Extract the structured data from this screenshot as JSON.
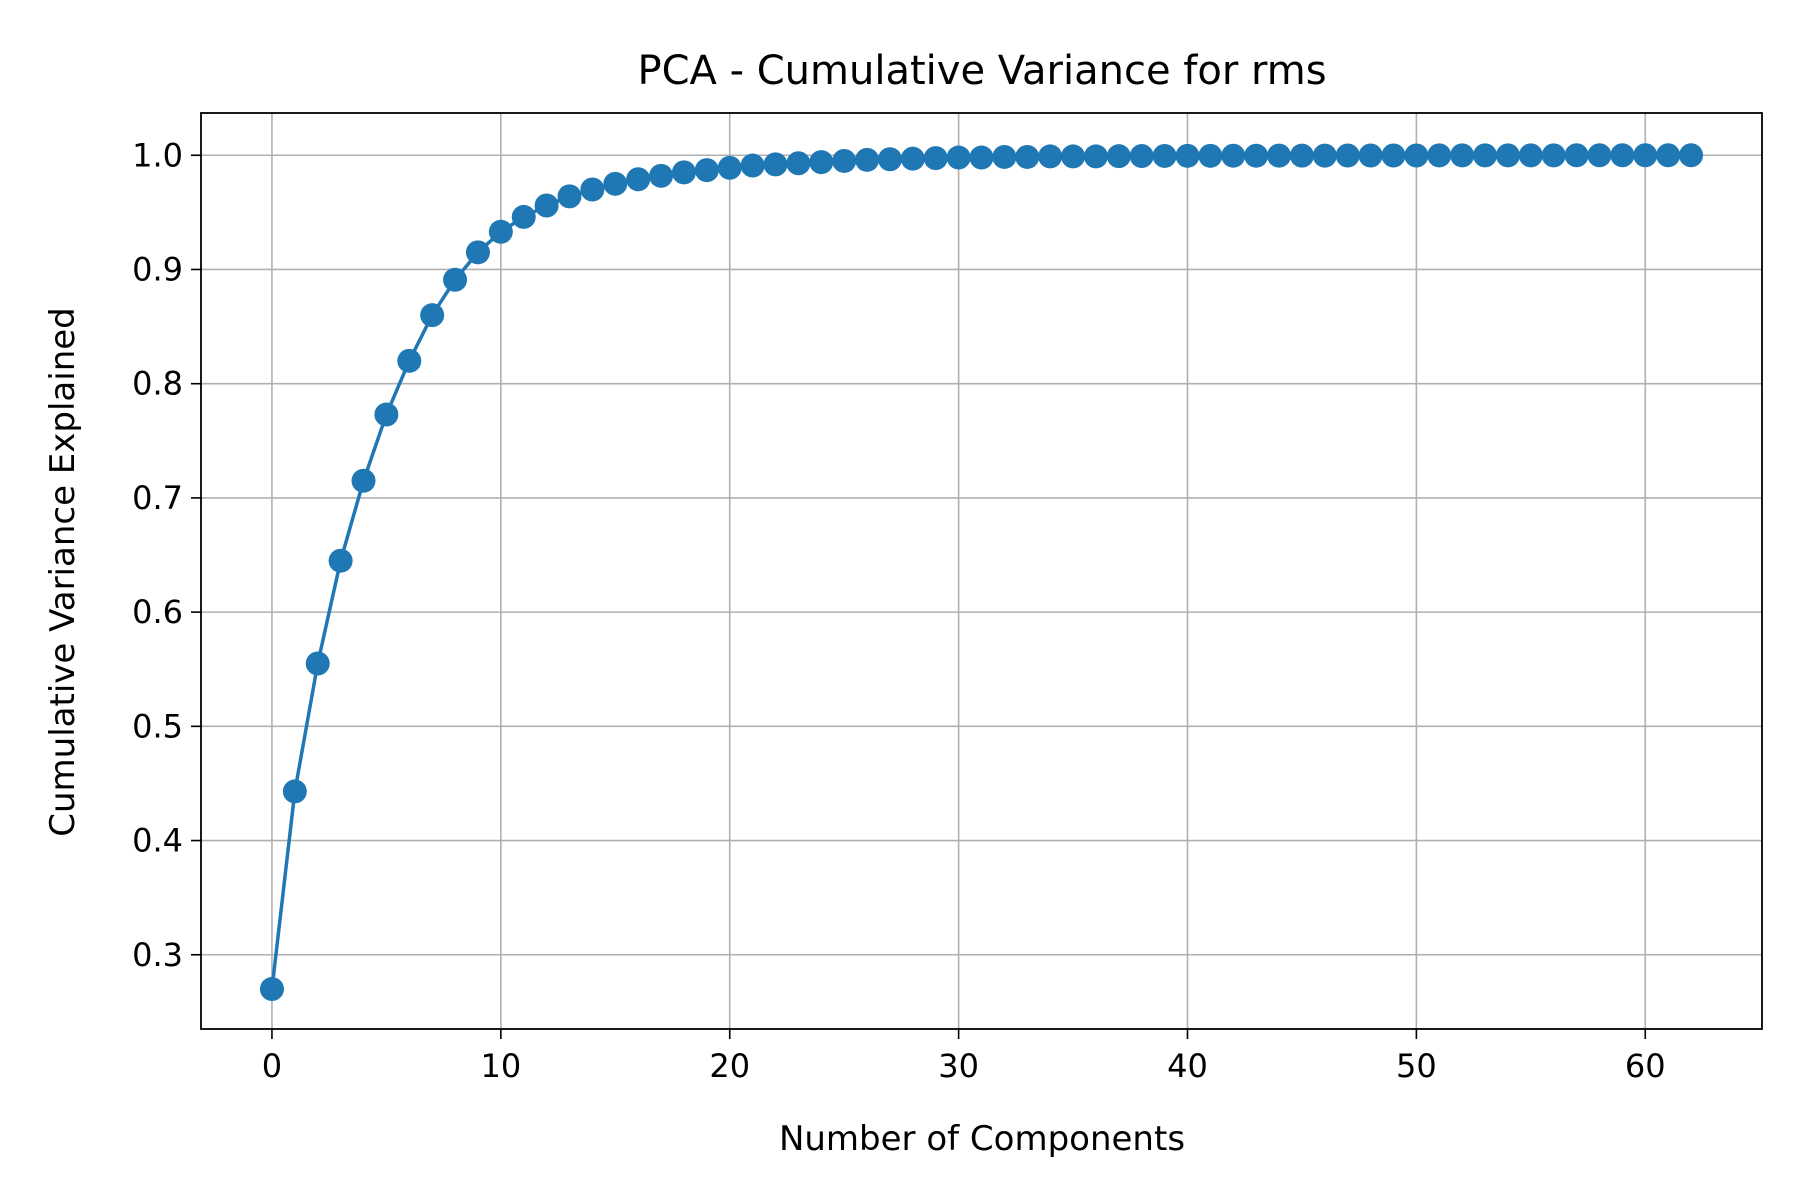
{
  "chart_data": {
    "type": "line",
    "title": "PCA - Cumulative Variance for rms",
    "xlabel": "Number of Components",
    "ylabel": "Cumulative Variance Explained",
    "xlim": [
      -3.1,
      65.1
    ],
    "ylim": [
      0.235,
      1.037
    ],
    "xticks": [
      0,
      10,
      20,
      30,
      40,
      50,
      60
    ],
    "yticks": [
      0.3,
      0.4,
      0.5,
      0.6,
      0.7,
      0.8,
      0.9,
      1.0
    ],
    "ytick_labels": [
      "0.3",
      "0.4",
      "0.5",
      "0.6",
      "0.7",
      "0.8",
      "0.9",
      "1.0"
    ],
    "grid": true,
    "color": "#1f77b4",
    "marker": "circle",
    "series": [
      {
        "x": [
          0,
          1,
          2,
          3,
          4,
          5,
          6,
          7,
          8,
          9,
          10,
          11,
          12,
          13,
          14,
          15,
          16,
          17,
          18,
          19,
          20,
          21,
          22,
          23,
          24,
          25,
          26,
          27,
          28,
          29,
          30,
          31,
          32,
          33,
          34,
          35,
          36,
          37,
          38,
          39,
          40,
          41,
          42,
          43,
          44,
          45,
          46,
          47,
          48,
          49,
          50,
          51,
          52,
          53,
          54,
          55,
          56,
          57,
          58,
          59,
          60,
          61,
          62
        ],
        "y": [
          0.27,
          0.443,
          0.555,
          0.645,
          0.715,
          0.773,
          0.82,
          0.86,
          0.891,
          0.915,
          0.933,
          0.946,
          0.956,
          0.964,
          0.97,
          0.975,
          0.979,
          0.982,
          0.985,
          0.987,
          0.989,
          0.991,
          0.992,
          0.993,
          0.994,
          0.995,
          0.996,
          0.9965,
          0.997,
          0.9975,
          0.998,
          0.998,
          0.9985,
          0.9985,
          0.999,
          0.999,
          0.999,
          0.9992,
          0.9993,
          0.9994,
          0.9995,
          0.9995,
          0.9996,
          0.9996,
          0.9997,
          0.9997,
          0.9997,
          0.9998,
          0.9998,
          0.9998,
          0.9998,
          0.9999,
          0.9999,
          0.9999,
          0.9999,
          0.9999,
          0.9999,
          1.0,
          1.0,
          1.0,
          1.0,
          1.0,
          1.0
        ]
      }
    ]
  }
}
